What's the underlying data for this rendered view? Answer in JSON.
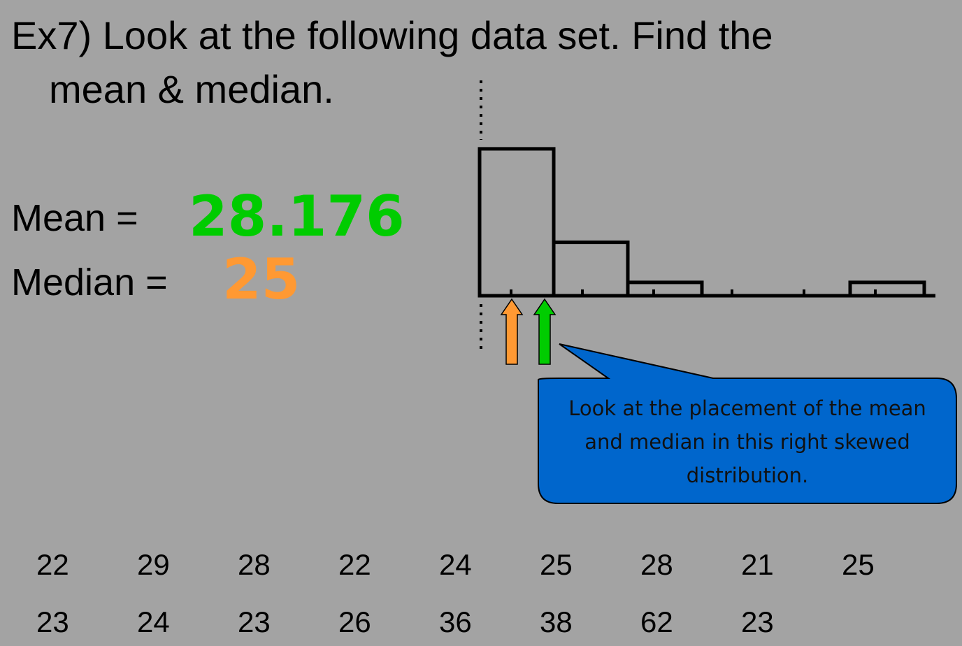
{
  "title_lines": [
    "Ex7) Look at the following data set.  Find the",
    "mean & median."
  ],
  "results": {
    "mean_label": "Mean =",
    "mean": 28.176,
    "median_label": "Median =",
    "median": 25
  },
  "histogram": {
    "values": [
      11,
      4,
      1,
      0,
      0,
      1
    ]
  },
  "callout": "Look at the placement of the mean and median in this right skewed distribution.",
  "data": [
    [
      22,
      29,
      28,
      22,
      24,
      25,
      28,
      21,
      25
    ],
    [
      23,
      24,
      23,
      26,
      36,
      38,
      62,
      23
    ]
  ]
}
